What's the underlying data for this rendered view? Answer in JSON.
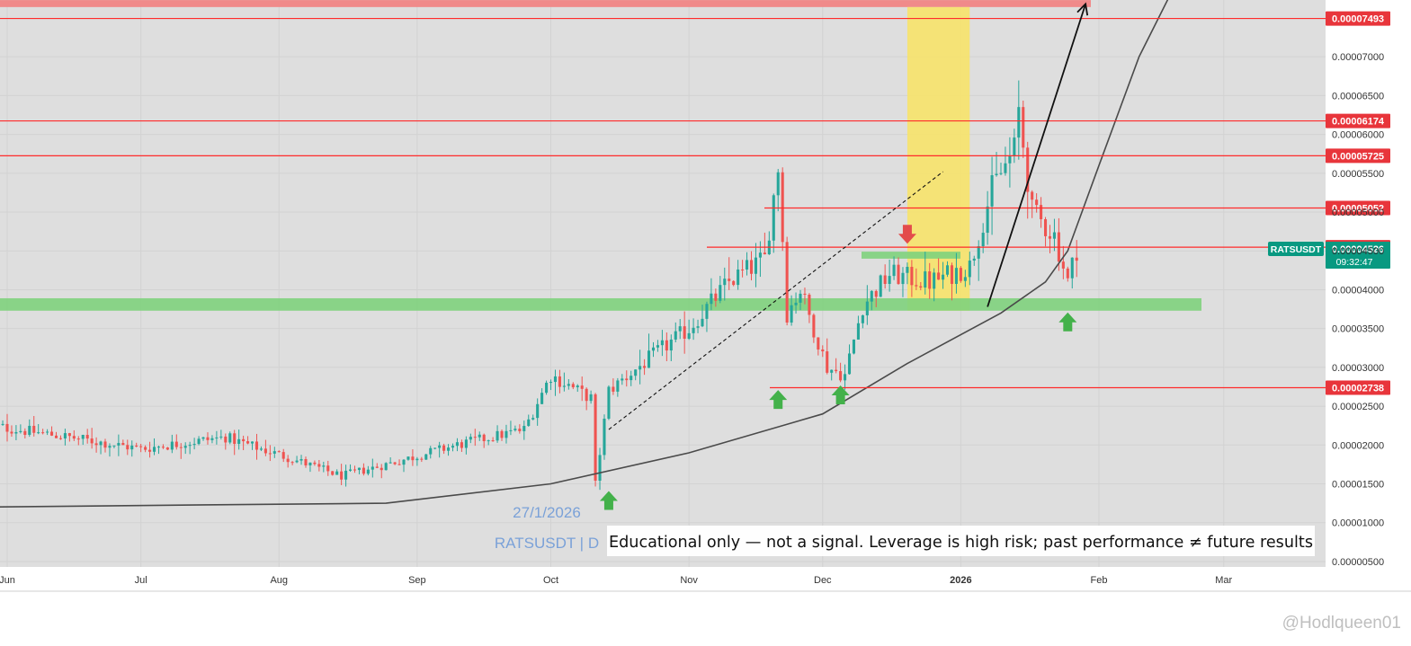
{
  "chart_data": {
    "type": "candlestick",
    "symbol": "RATSUSDT",
    "date_stamp": "27/1/2026",
    "watermark": "RATSUSDT | D",
    "disclaimer": "Educational only — not a signal. Leverage is high risk; past performance ≠ future results",
    "author": "@Hodlqueen01",
    "ylim": [
      4.3e-06,
      7.731e-05
    ],
    "x_ticks": [
      "Jun",
      "Jul",
      "Aug",
      "Sep",
      "Oct",
      "Nov",
      "Dec",
      "2026",
      "Feb",
      "Mar"
    ],
    "y_ticks": [
      "0.00000500",
      "0.00001000",
      "0.00001500",
      "0.00002000",
      "0.00002500",
      "0.00003000",
      "0.00003500",
      "0.00004000",
      "0.00004500",
      "0.00005000",
      "0.00005500",
      "0.00006000",
      "0.00006500",
      "0.00007000"
    ],
    "levels": [
      "0.00007493",
      "0.00006174",
      "0.00005725",
      "0.00005052",
      "0.00004548",
      "0.00002738"
    ],
    "last_price": {
      "symbol": "RATSUSDT",
      "price": "0.00004526",
      "countdown": "09:32:47"
    },
    "zones": {
      "top_resistance": [
        7.64e-05,
        7.73e-05
      ],
      "support": [
        3.73e-05,
        3.89e-05
      ],
      "consolidation": [
        4.4e-05,
        4.49e-05
      ]
    },
    "anchors": [
      {
        "date": "2025-05-28",
        "price": 2.25e-05
      },
      {
        "date": "2025-06-15",
        "price": 2.1e-05
      },
      {
        "date": "2025-07-01",
        "price": 1.95e-05
      },
      {
        "date": "2025-07-20",
        "price": 2.1e-05
      },
      {
        "date": "2025-08-05",
        "price": 1.8e-05
      },
      {
        "date": "2025-08-15",
        "price": 1.6e-05
      },
      {
        "date": "2025-08-25",
        "price": 1.75e-05
      },
      {
        "date": "2025-09-10",
        "price": 2e-05
      },
      {
        "date": "2025-09-25",
        "price": 2.2e-05
      },
      {
        "date": "2025-10-01",
        "price": 2.9e-05
      },
      {
        "date": "2025-10-10",
        "price": 2.6e-05
      },
      {
        "date": "2025-10-11",
        "price": 1.5e-05
      },
      {
        "date": "2025-10-14",
        "price": 2.7e-05
      },
      {
        "date": "2025-10-25",
        "price": 3.2e-05
      },
      {
        "date": "2025-11-01",
        "price": 3.5e-05
      },
      {
        "date": "2025-11-10",
        "price": 4.1e-05
      },
      {
        "date": "2025-11-18",
        "price": 4.4e-05
      },
      {
        "date": "2025-11-21",
        "price": 5.6e-05
      },
      {
        "date": "2025-11-23",
        "price": 3.7e-05
      },
      {
        "date": "2025-11-26",
        "price": 4e-05
      },
      {
        "date": "2025-12-02",
        "price": 3e-05
      },
      {
        "date": "2025-12-06",
        "price": 2.9e-05
      },
      {
        "date": "2025-12-10",
        "price": 3.8e-05
      },
      {
        "date": "2025-12-16",
        "price": 4.2e-05
      },
      {
        "date": "2025-12-25",
        "price": 4.1e-05
      },
      {
        "date": "2026-01-03",
        "price": 4.3e-05
      },
      {
        "date": "2026-01-08",
        "price": 5.3e-05
      },
      {
        "date": "2026-01-13",
        "price": 5.8e-05
      },
      {
        "date": "2026-01-14",
        "price": 6.3e-05
      },
      {
        "date": "2026-01-17",
        "price": 5e-05
      },
      {
        "date": "2026-01-22",
        "price": 4.7e-05
      },
      {
        "date": "2026-01-25",
        "price": 4.1e-05
      },
      {
        "date": "2026-01-27",
        "price": 4.53e-05
      }
    ],
    "moving_average": [
      {
        "date": "2025-05-25",
        "price": 1.2e-05
      },
      {
        "date": "2025-07-15",
        "price": 1.23e-05
      },
      {
        "date": "2025-08-25",
        "price": 1.25e-05
      },
      {
        "date": "2025-10-01",
        "price": 1.5e-05
      },
      {
        "date": "2025-11-01",
        "price": 1.9e-05
      },
      {
        "date": "2025-12-01",
        "price": 2.4e-05
      },
      {
        "date": "2025-12-20",
        "price": 3.05e-05
      },
      {
        "date": "2026-01-10",
        "price": 3.7e-05
      },
      {
        "date": "2026-01-20",
        "price": 4.1e-05
      },
      {
        "date": "2026-01-25",
        "price": 4.5e-05
      },
      {
        "date": "2026-02-01",
        "price": 5.6e-05
      },
      {
        "date": "2026-02-10",
        "price": 7e-05
      },
      {
        "date": "2026-02-17",
        "price": 7.8e-05
      }
    ],
    "trend_lines": [
      {
        "name": "dashed-trendline",
        "style": "dashed",
        "from": {
          "date": "2025-10-14",
          "price": 2.2e-05
        },
        "to": {
          "date": "2025-12-28",
          "price": 5.52e-05
        }
      },
      {
        "name": "projection-arrow",
        "style": "solid",
        "from": {
          "date": "2026-01-07",
          "price": 3.78e-05
        },
        "to": {
          "date": "2026-01-29",
          "price": 7.68e-05
        }
      }
    ],
    "markers": [
      {
        "type": "up",
        "date": "2025-10-14",
        "price": 1.28e-05
      },
      {
        "type": "up",
        "date": "2025-11-21",
        "price": 2.58e-05
      },
      {
        "type": "up",
        "date": "2025-12-05",
        "price": 2.64e-05
      },
      {
        "type": "up",
        "date": "2026-01-25",
        "price": 3.58e-05
      },
      {
        "type": "down",
        "date": "2025-12-20",
        "price": 4.72e-05
      }
    ],
    "highlight_range": {
      "from": "2025-12-20",
      "to": "2026-01-03"
    },
    "colors": {
      "up": "#26a69a",
      "down": "#ef5350",
      "level": "#ff2b2b",
      "level_label_bg": "#e8353b",
      "support_zone": "#7fd17d",
      "top_zone": "#f08a8a",
      "highlight": "#f7e36a",
      "moving_average": "#4a4a4a",
      "last_price_bg": "#089981",
      "marker_up": "#43b14a",
      "marker_down": "#e34b4b",
      "watermark": "#7aa1d8"
    }
  }
}
